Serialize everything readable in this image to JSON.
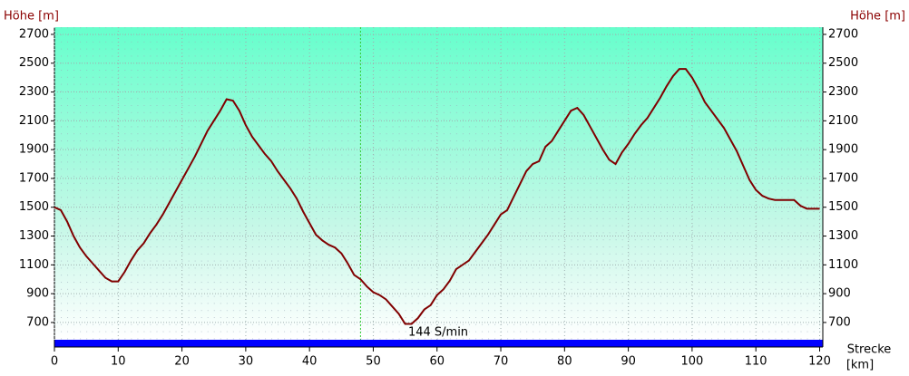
{
  "chart_data": {
    "type": "line",
    "y_label": "Höhe [m]",
    "x_label_1": "Strecke",
    "x_label_2": "[km]",
    "annotation": "144 S/min",
    "markers": [
      {
        "x": 48,
        "color": "#33cc33"
      }
    ],
    "xlim": [
      0,
      120.5
    ],
    "xticks": [
      0,
      10,
      20,
      30,
      40,
      50,
      60,
      70,
      80,
      90,
      100,
      110,
      120
    ],
    "ylim": [
      580,
      2750
    ],
    "yticks": [
      700,
      900,
      1100,
      1300,
      1500,
      1700,
      1900,
      2100,
      2300,
      2500,
      2700
    ],
    "grid": true,
    "color": "#800000",
    "x": [
      0,
      1,
      2,
      3,
      4,
      5,
      6,
      7,
      8,
      9,
      10,
      11,
      12,
      13,
      14,
      15,
      16,
      17,
      18,
      19,
      20,
      21,
      22,
      23,
      24,
      25,
      26,
      27,
      28,
      29,
      30,
      31,
      32,
      33,
      34,
      35,
      36,
      37,
      38,
      39,
      40,
      41,
      42,
      43,
      44,
      45,
      46,
      47,
      48,
      49,
      50,
      51,
      52,
      53,
      54,
      55,
      56,
      57,
      58,
      59,
      60,
      61,
      62,
      63,
      64,
      65,
      66,
      67,
      68,
      69,
      70,
      71,
      72,
      73,
      74,
      75,
      76,
      77,
      78,
      79,
      80,
      81,
      82,
      83,
      84,
      85,
      86,
      87,
      88,
      89,
      90,
      91,
      92,
      93,
      94,
      95,
      96,
      97,
      98,
      99,
      100,
      101,
      102,
      103,
      104,
      105,
      106,
      107,
      108,
      109,
      110,
      111,
      112,
      113,
      114,
      115,
      116,
      117,
      118,
      119,
      120
    ],
    "values": [
      1500,
      1480,
      1400,
      1300,
      1220,
      1160,
      1110,
      1060,
      1010,
      985,
      985,
      1050,
      1130,
      1200,
      1250,
      1320,
      1380,
      1450,
      1530,
      1610,
      1690,
      1770,
      1850,
      1940,
      2030,
      2100,
      2170,
      2250,
      2240,
      2170,
      2070,
      1990,
      1930,
      1870,
      1820,
      1750,
      1690,
      1630,
      1560,
      1470,
      1390,
      1310,
      1270,
      1240,
      1220,
      1180,
      1110,
      1030,
      1000,
      950,
      910,
      890,
      860,
      810,
      760,
      690,
      690,
      730,
      790,
      820,
      890,
      930,
      990,
      1070,
      1100,
      1130,
      1190,
      1250,
      1310,
      1380,
      1450,
      1480,
      1570,
      1660,
      1750,
      1800,
      1820,
      1920,
      1960,
      2030,
      2100,
      2170,
      2190,
      2140,
      2060,
      1980,
      1900,
      1830,
      1800,
      1880,
      1940,
      2010,
      2070,
      2120,
      2190,
      2260,
      2340,
      2410,
      2460,
      2460,
      2400,
      2320,
      2230,
      2170,
      2110,
      2050,
      1970,
      1890,
      1790,
      1690,
      1620,
      1580,
      1560,
      1550,
      1550,
      1550,
      1550,
      1510,
      1490,
      1490,
      1490
    ]
  }
}
